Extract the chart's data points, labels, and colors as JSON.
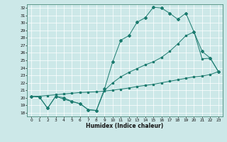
{
  "xlabel": "Humidex (Indice chaleur)",
  "bg_color": "#cce8e8",
  "grid_color": "#ffffff",
  "line_color": "#1a7a6e",
  "xlim": [
    -0.5,
    23.5
  ],
  "ylim": [
    17.5,
    32.5
  ],
  "yticks": [
    18,
    19,
    20,
    21,
    22,
    23,
    24,
    25,
    26,
    27,
    28,
    29,
    30,
    31,
    32
  ],
  "xticks": [
    0,
    1,
    2,
    3,
    4,
    5,
    6,
    7,
    8,
    9,
    10,
    11,
    12,
    13,
    14,
    15,
    16,
    17,
    18,
    19,
    20,
    21,
    22,
    23
  ],
  "line_top_x": [
    0,
    1,
    2,
    3,
    4,
    5,
    6,
    7,
    8,
    9,
    10,
    11,
    12,
    13,
    14,
    15,
    16,
    17,
    18,
    19,
    20,
    21,
    22,
    23
  ],
  "line_top_y": [
    20.2,
    20.1,
    18.6,
    20.2,
    20.0,
    19.5,
    19.2,
    18.4,
    18.3,
    21.2,
    24.8,
    27.7,
    28.3,
    30.1,
    30.7,
    32.1,
    32.0,
    31.3,
    30.5,
    31.3,
    28.8,
    26.2,
    25.3,
    23.5
  ],
  "line_mid_x": [
    0,
    1,
    2,
    3,
    4,
    5,
    6,
    7,
    8,
    9,
    10,
    11,
    12,
    13,
    14,
    15,
    16,
    17,
    18,
    19,
    20,
    21,
    22,
    23
  ],
  "line_mid_y": [
    20.2,
    20.1,
    18.6,
    20.2,
    19.8,
    19.5,
    19.2,
    18.4,
    18.3,
    21.0,
    22.0,
    22.8,
    23.4,
    23.9,
    24.4,
    24.8,
    25.4,
    26.2,
    27.2,
    28.3,
    28.8,
    25.2,
    25.3,
    23.5
  ],
  "line_bot_x": [
    0,
    1,
    2,
    3,
    4,
    5,
    6,
    7,
    8,
    9,
    10,
    11,
    12,
    13,
    14,
    15,
    16,
    17,
    18,
    19,
    20,
    21,
    22,
    23
  ],
  "line_bot_y": [
    20.2,
    20.2,
    20.3,
    20.4,
    20.5,
    20.6,
    20.7,
    20.75,
    20.8,
    20.9,
    21.0,
    21.15,
    21.3,
    21.5,
    21.65,
    21.8,
    22.0,
    22.2,
    22.4,
    22.6,
    22.8,
    22.9,
    23.1,
    23.5
  ]
}
